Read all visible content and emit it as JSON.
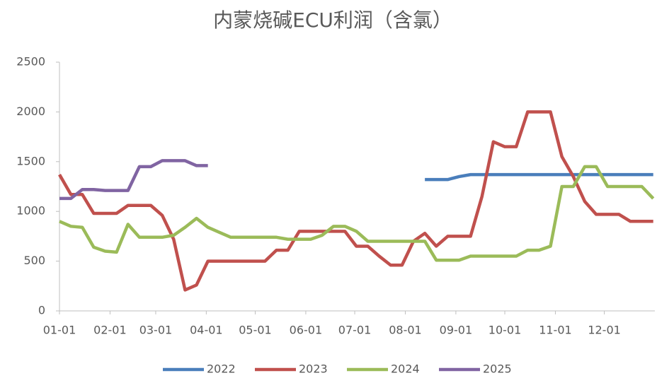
{
  "chart_data": {
    "type": "line",
    "title": "内蒙烧碱ECU利润（含氯）",
    "x": [
      0,
      7,
      14,
      21,
      28,
      35,
      42,
      49,
      56,
      63,
      70,
      77,
      84,
      91,
      98,
      105,
      112,
      119,
      126,
      133,
      140,
      147,
      154,
      161,
      168,
      175,
      182,
      189,
      196,
      203,
      210,
      217,
      224,
      231,
      238,
      245,
      252,
      259,
      266,
      273,
      280,
      287,
      294,
      301,
      308,
      315,
      322,
      329,
      336,
      343,
      350,
      357,
      364
    ],
    "xlim": [
      0,
      365
    ],
    "xticks": [
      {
        "value": 0,
        "label": "01-01"
      },
      {
        "value": 31,
        "label": "02-01"
      },
      {
        "value": 59,
        "label": "03-01"
      },
      {
        "value": 90,
        "label": "04-01"
      },
      {
        "value": 120,
        "label": "05-01"
      },
      {
        "value": 151,
        "label": "06-01"
      },
      {
        "value": 181,
        "label": "07-01"
      },
      {
        "value": 212,
        "label": "08-01"
      },
      {
        "value": 243,
        "label": "09-01"
      },
      {
        "value": 273,
        "label": "10-01"
      },
      {
        "value": 304,
        "label": "11-01"
      },
      {
        "value": 334,
        "label": "12-01"
      }
    ],
    "ylim": [
      0,
      2500
    ],
    "yticks": [
      0,
      500,
      1000,
      1500,
      2000,
      2500
    ],
    "grid": false,
    "legend": "bottom",
    "series": [
      {
        "name": "2022",
        "color": "#4a7ebb",
        "values": [
          null,
          null,
          null,
          null,
          null,
          null,
          null,
          null,
          null,
          null,
          null,
          null,
          null,
          null,
          null,
          null,
          null,
          null,
          null,
          null,
          null,
          null,
          null,
          null,
          null,
          null,
          null,
          null,
          null,
          null,
          null,
          null,
          1320,
          1320,
          1320,
          1350,
          1370,
          1370,
          1370,
          1370,
          1370,
          1370,
          1370,
          1370,
          1370,
          1370,
          1370,
          1370,
          1370,
          1370,
          1370,
          1370,
          1370
        ]
      },
      {
        "name": "2023",
        "color": "#c0504d",
        "values": [
          1370,
          1170,
          1170,
          980,
          980,
          980,
          1060,
          1060,
          1060,
          960,
          720,
          210,
          260,
          500,
          500,
          500,
          500,
          500,
          500,
          610,
          610,
          800,
          800,
          800,
          800,
          800,
          650,
          650,
          550,
          460,
          460,
          700,
          780,
          650,
          750,
          750,
          750,
          1150,
          1700,
          1650,
          1650,
          2000,
          2000,
          2000,
          1550,
          1350,
          1100,
          970,
          970,
          970,
          900,
          900,
          900
        ]
      },
      {
        "name": "2024",
        "color": "#9bbb59",
        "values": [
          900,
          850,
          840,
          640,
          600,
          590,
          870,
          740,
          740,
          740,
          760,
          840,
          930,
          840,
          790,
          740,
          740,
          740,
          740,
          740,
          720,
          720,
          720,
          760,
          850,
          850,
          800,
          700,
          700,
          700,
          700,
          700,
          700,
          510,
          510,
          510,
          550,
          550,
          550,
          550,
          550,
          610,
          610,
          650,
          1250,
          1250,
          1450,
          1450,
          1250,
          1250,
          1250,
          1250,
          1130
        ]
      },
      {
        "name": "2025",
        "color": "#8064a2",
        "values": [
          1130,
          1130,
          1220,
          1220,
          1210,
          1210,
          1210,
          1450,
          1450,
          1510,
          1510,
          1510,
          1460,
          1460,
          null,
          null,
          null,
          null,
          null,
          null,
          null,
          null,
          null,
          null,
          null,
          null,
          null,
          null,
          null,
          null,
          null,
          null,
          null,
          null,
          null,
          null,
          null,
          null,
          null,
          null,
          null,
          null,
          null,
          null,
          null,
          null,
          null,
          null,
          null,
          null,
          null,
          null,
          null
        ]
      }
    ]
  }
}
